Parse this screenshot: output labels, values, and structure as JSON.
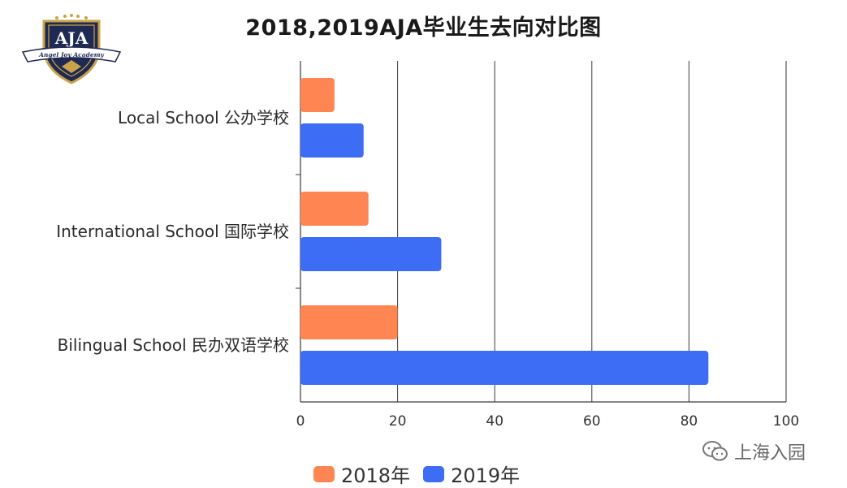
{
  "logo": {
    "letters": "AJA",
    "ribbon": "Angel Joy Academy"
  },
  "chart_data": {
    "type": "bar",
    "orientation": "horizontal",
    "title": "2018,2019AJA毕业生去向对比图",
    "categories": [
      "Local School 公办学校",
      "International School 国际学校",
      "Bilingual School 民办双语学校"
    ],
    "series": [
      {
        "name": "2018年",
        "color": "#ff8552",
        "values": [
          7,
          14,
          20
        ]
      },
      {
        "name": "2019年",
        "color": "#3d6cf5",
        "values": [
          13,
          29,
          84
        ]
      }
    ],
    "xlim": [
      0,
      100
    ],
    "xticks": [
      0,
      20,
      40,
      60,
      80,
      100
    ],
    "grid": "vertical",
    "legend": "bottom"
  },
  "watermark": {
    "text": "上海入园",
    "icon": "chat-bubbles-icon"
  }
}
